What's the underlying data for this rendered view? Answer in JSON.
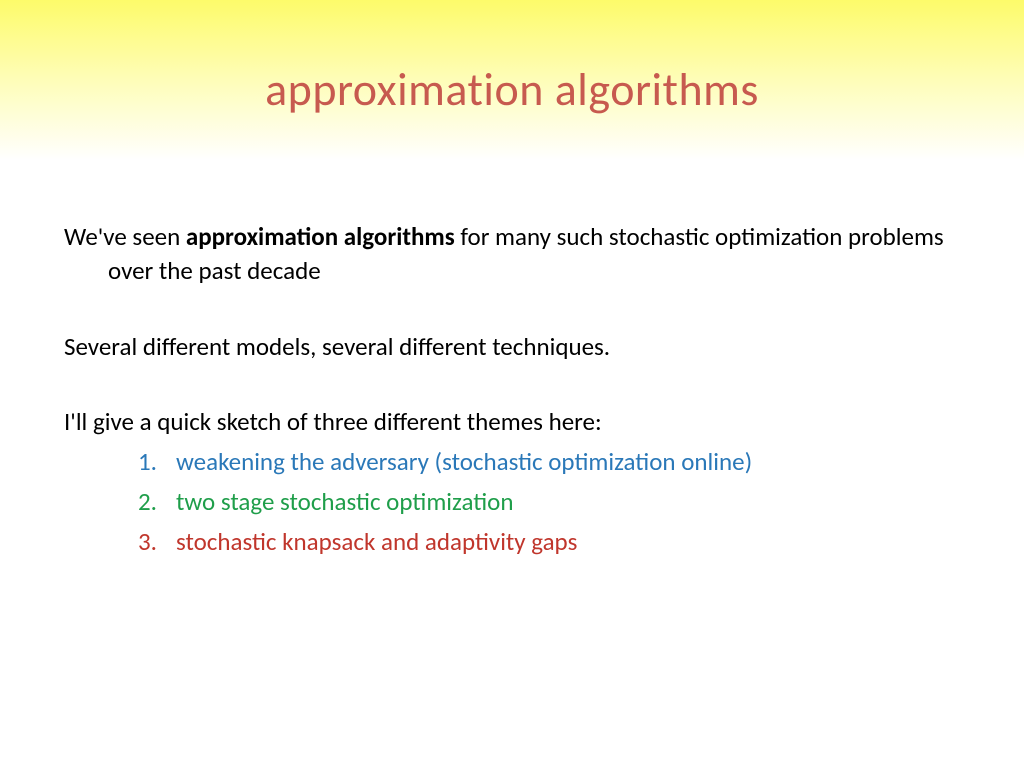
{
  "slide": {
    "title": "approximation algorithms",
    "title_color": "#c75a4f",
    "title_fontsize": 46,
    "header_gradient": [
      "#fdfb6a",
      "#fefdb8",
      "#ffffff"
    ],
    "body_fontsize": 25,
    "body_color": "#000000",
    "para1_lead": "We've seen ",
    "para1_bold": "approximation algorithms",
    "para1_tail": " for many such stochastic optimization problems over the past decade",
    "para2": "Several different models, several different techniques.",
    "para3": "I'll give a quick sketch of three different themes here:",
    "items": [
      {
        "num": "1.",
        "text": "weakening the adversary (stochastic optimization online)",
        "color": "#2a78b8"
      },
      {
        "num": "2.",
        "text": "two stage stochastic optimization",
        "color": "#1f9e4a"
      },
      {
        "num": "3.",
        "text": "stochastic knapsack and adaptivity gaps",
        "color": "#c0362c"
      }
    ]
  }
}
